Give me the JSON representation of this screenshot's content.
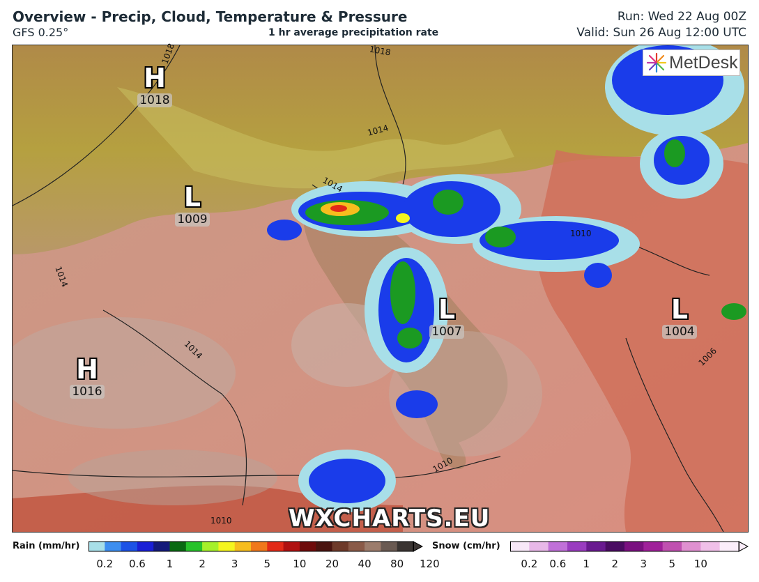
{
  "header": {
    "title": "Overview - Precip, Cloud, Temperature & Pressure",
    "model": "GFS 0.25°",
    "subtitle": "1 hr average precipitation rate",
    "run": "Run: Wed 22 Aug 00Z",
    "valid": "Valid: Sun 26 Aug 12:00 UTC"
  },
  "logo": {
    "text": "MetDesk",
    "icon": "metdesk-starburst-icon"
  },
  "watermark": "WXCHARTS.EU",
  "pressure_centers": [
    {
      "type": "H",
      "value": "1018"
    },
    {
      "type": "L",
      "value": "1009"
    },
    {
      "type": "H",
      "value": "1016"
    },
    {
      "type": "L",
      "value": "1007"
    },
    {
      "type": "L",
      "value": "1004"
    }
  ],
  "isobar_labels": [
    "1018",
    "1018",
    "1014",
    "1014",
    "1014",
    "1014",
    "1010",
    "1010",
    "1010",
    "1006"
  ],
  "legend": {
    "rain": {
      "label": "Rain (mm/hr)",
      "ticks": [
        "0.2",
        "0.6",
        "1",
        "2",
        "3",
        "5",
        "10",
        "20",
        "40",
        "80",
        "120"
      ],
      "colors": [
        "#a8dfe8",
        "#3d8ef0",
        "#1c52e6",
        "#1a1fd6",
        "#141a7a",
        "#0a6a12",
        "#27c22a",
        "#a6f02a",
        "#f5f51e",
        "#f7bd1e",
        "#f0781c",
        "#e32a18",
        "#b01010",
        "#6e0b0b",
        "#4a1410",
        "#6e3a2a",
        "#8a5a48",
        "#9c7c6c",
        "#6a5a52",
        "#3a3432"
      ]
    },
    "snow": {
      "label": "Snow (cm/hr)",
      "ticks": [
        "0.2",
        "0.6",
        "1",
        "2",
        "3",
        "5",
        "10"
      ],
      "colors": [
        "#f8e8f8",
        "#e8b8e8",
        "#c070d8",
        "#9a3cc0",
        "#6a1a90",
        "#4a0c62",
        "#7a1080",
        "#a0209a",
        "#c050b0",
        "#e090d0",
        "#f0c0e8",
        "#fbeefa"
      ]
    }
  },
  "colors": {
    "land_warm": "#c8836a",
    "sea": "#d8a8a0",
    "precip_light": "#a8dfe8",
    "precip_blue": "#1a3cea",
    "precip_green": "#1b9a22"
  }
}
